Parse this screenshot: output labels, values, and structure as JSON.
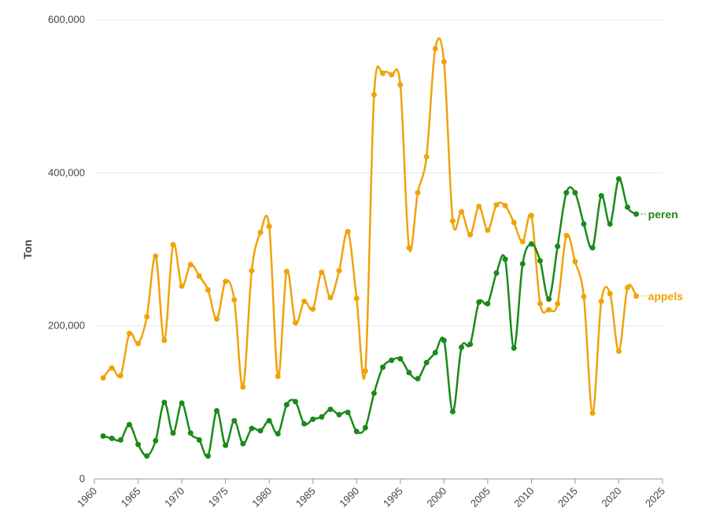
{
  "chart_data": {
    "type": "line",
    "title": "",
    "xlabel": "",
    "ylabel": "Ton",
    "xlim": [
      1960,
      2025
    ],
    "ylim": [
      0,
      600000
    ],
    "x_ticks": [
      1960,
      1965,
      1970,
      1975,
      1980,
      1985,
      1990,
      1995,
      2000,
      2005,
      2010,
      2015,
      2020,
      2025
    ],
    "y_ticks": [
      0,
      200000,
      400000,
      600000
    ],
    "y_tick_labels": [
      "0",
      "200,000",
      "400,000",
      "600,000"
    ],
    "grid": "horizontal",
    "legend": "inline at line ends",
    "x": [
      1961,
      1962,
      1963,
      1964,
      1965,
      1966,
      1967,
      1968,
      1969,
      1970,
      1971,
      1972,
      1973,
      1974,
      1975,
      1976,
      1977,
      1978,
      1979,
      1980,
      1981,
      1982,
      1983,
      1984,
      1985,
      1986,
      1987,
      1988,
      1989,
      1990,
      1991,
      1992,
      1993,
      1994,
      1995,
      1996,
      1997,
      1998,
      1999,
      2000,
      2001,
      2002,
      2003,
      2004,
      2005,
      2006,
      2007,
      2008,
      2009,
      2010,
      2011,
      2012,
      2013,
      2014,
      2015,
      2016,
      2017,
      2018,
      2019,
      2020,
      2021,
      2022
    ],
    "series": [
      {
        "name": "appels",
        "color": "#f0a30a",
        "values": [
          132000,
          145000,
          135000,
          190000,
          177000,
          212000,
          291000,
          181000,
          306000,
          252000,
          280000,
          265000,
          247000,
          209000,
          258000,
          234000,
          120000,
          272000,
          322000,
          330000,
          134000,
          271000,
          204000,
          232000,
          222000,
          270000,
          237000,
          272000,
          323000,
          236000,
          141000,
          502000,
          530000,
          528000,
          515000,
          302000,
          374000,
          421000,
          562000,
          545000,
          337000,
          349000,
          319000,
          356000,
          325000,
          358000,
          357000,
          335000,
          310000,
          344000,
          229000,
          221000,
          229000,
          318000,
          284000,
          238000,
          86000,
          232000,
          242000,
          167000,
          250000,
          239000
        ]
      },
      {
        "name": "peren",
        "color": "#1a8a1a",
        "values": [
          56000,
          53000,
          51000,
          71000,
          45000,
          30000,
          50000,
          100000,
          60000,
          99000,
          60000,
          51000,
          30000,
          89000,
          44000,
          76000,
          46000,
          66000,
          63000,
          76000,
          59000,
          97000,
          101000,
          72000,
          78000,
          81000,
          91000,
          84000,
          87000,
          62000,
          67000,
          112000,
          146000,
          155000,
          157000,
          139000,
          131000,
          152000,
          165000,
          181000,
          88000,
          172000,
          176000,
          231000,
          229000,
          269000,
          287000,
          171000,
          281000,
          307000,
          285000,
          235000,
          304000,
          374000,
          374000,
          333000,
          302000,
          370000,
          333000,
          392000,
          355000,
          346000
        ]
      }
    ]
  }
}
